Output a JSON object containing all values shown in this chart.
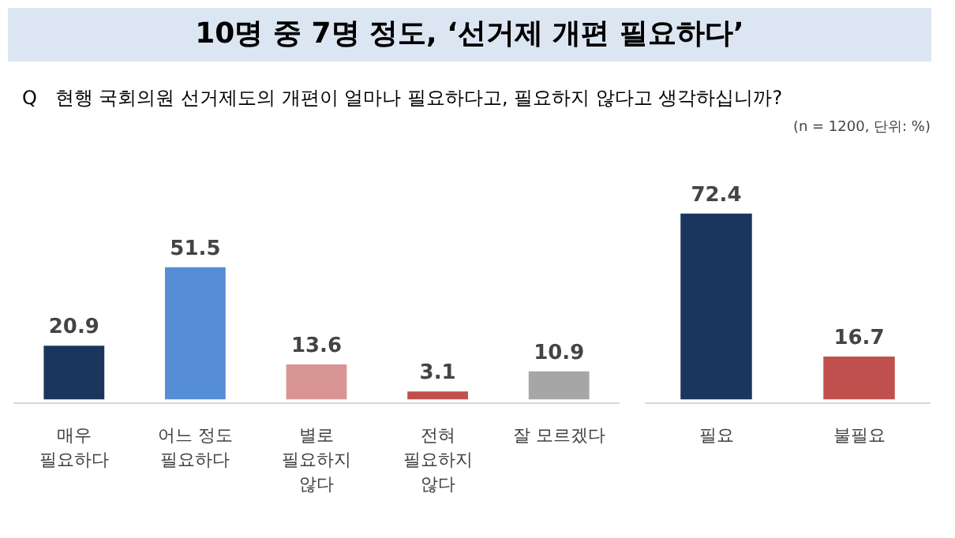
{
  "chart_data": [
    {
      "type": "bar",
      "title": "10명 중 7명 정도, ‘선거제 개편 필요하다’",
      "subtitle": "Q   현행 국회의원 선거제도의 개편이 얼마나 필요하다고, 필요하지 않다고 생각하십니까?",
      "categories": [
        "매우\n필요하다",
        "어느 정도\n필요하다",
        "별로\n필요하지\n않다",
        "전혀\n필요하지\n않다",
        "잘 모르겠다"
      ],
      "values": [
        20.9,
        51.5,
        13.6,
        3.1,
        10.9
      ],
      "colors": [
        "#1b365d",
        "#558ed5",
        "#d99594",
        "#c0504d",
        "#a6a6a6"
      ],
      "data_labels": true
    },
    {
      "type": "bar",
      "annotations": [
        "(n = 1200, 단위: %)"
      ],
      "categories": [
        "필요",
        "불필요"
      ],
      "values": [
        72.4,
        16.7
      ],
      "colors": [
        "#1b365d",
        "#c0504d"
      ],
      "data_labels": true
    }
  ]
}
